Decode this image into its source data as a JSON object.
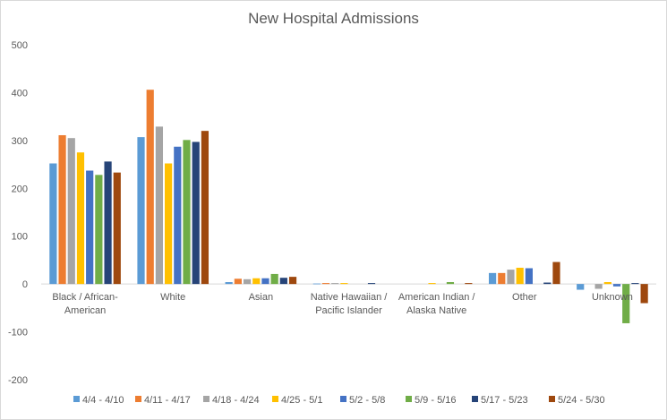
{
  "chart_data": {
    "type": "bar",
    "title": "New Hospital Admissions",
    "xlabel": "",
    "ylabel": "",
    "ylim": [
      -200,
      500
    ],
    "yticks": [
      -200,
      -100,
      0,
      100,
      200,
      300,
      400,
      500
    ],
    "grid": false,
    "legend_position": "bottom",
    "categories": [
      [
        "Black / African-",
        "American"
      ],
      [
        "White"
      ],
      [
        "Asian"
      ],
      [
        "Native Hawaiian /",
        "Pacific Islander"
      ],
      [
        "American Indian /",
        "Alaska Native"
      ],
      [
        "Other"
      ],
      [
        "Unknown"
      ]
    ],
    "series": [
      {
        "name": "4/4 - 4/10",
        "color": "#5b9bd5",
        "values": [
          252,
          307,
          4,
          1,
          0,
          23,
          -12
        ]
      },
      {
        "name": "4/11 - 4/17",
        "color": "#ed7d31",
        "values": [
          311,
          406,
          11,
          2,
          0,
          23,
          0
        ]
      },
      {
        "name": "4/18 - 4/24",
        "color": "#a5a5a5",
        "values": [
          305,
          329,
          10,
          2,
          0,
          30,
          -10
        ]
      },
      {
        "name": "4/25 - 5/1",
        "color": "#ffc000",
        "values": [
          275,
          252,
          12,
          2,
          2,
          34,
          4
        ]
      },
      {
        "name": "5/2 - 5/8",
        "color": "#4472c4",
        "values": [
          237,
          287,
          12,
          0,
          0,
          33,
          -5
        ]
      },
      {
        "name": "5/9 - 5/16",
        "color": "#70ad47",
        "values": [
          228,
          301,
          21,
          0,
          4,
          0,
          -82
        ]
      },
      {
        "name": "5/17 - 5/23",
        "color": "#264478",
        "values": [
          256,
          297,
          13,
          2,
          0,
          3,
          2
        ]
      },
      {
        "name": "5/24 - 5/30",
        "color": "#9e480e",
        "values": [
          233,
          320,
          15,
          0,
          2,
          46,
          -40
        ]
      }
    ]
  }
}
